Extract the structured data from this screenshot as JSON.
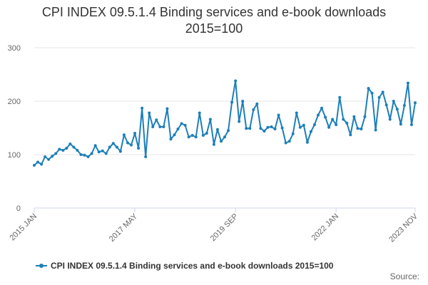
{
  "chart_data": {
    "type": "line",
    "title": "CPI INDEX 09.5.1.4 Binding services and e-book downloads",
    "subtitle": "2015=100",
    "xlabel": "",
    "ylabel": "",
    "ylim": [
      0,
      300
    ],
    "yticks": [
      "0",
      "100",
      "200",
      "300"
    ],
    "grid": true,
    "legend_position": "bottom-left",
    "x_ticks": [
      "2015 JAN",
      "2017 MAY",
      "2019 SEP",
      "2022 JAN",
      "2023 NOV"
    ],
    "x_start": "2015-01",
    "x_end": "2023-11",
    "series": [
      {
        "name": "CPI INDEX 09.5.1.4 Binding services and e-book downloads 2015=100",
        "color": "#1d7fb9",
        "values": [
          80,
          86,
          82,
          96,
          91,
          97,
          102,
          110,
          108,
          112,
          120,
          114,
          108,
          100,
          99,
          96,
          102,
          117,
          105,
          107,
          102,
          114,
          121,
          114,
          106,
          137,
          122,
          118,
          140,
          112,
          187,
          96,
          178,
          152,
          165,
          152,
          152,
          186,
          129,
          137,
          148,
          158,
          155,
          133,
          136,
          133,
          178,
          136,
          140,
          166,
          119,
          147,
          125,
          133,
          145,
          198,
          238,
          162,
          200,
          149,
          149,
          184,
          195,
          149,
          144,
          151,
          152,
          148,
          174,
          150,
          122,
          125,
          139,
          178,
          151,
          155,
          123,
          143,
          156,
          174,
          187,
          170,
          151,
          166,
          156,
          207,
          166,
          159,
          137,
          171,
          149,
          148,
          171,
          224,
          215,
          146,
          207,
          217,
          193,
          166,
          200,
          185,
          157,
          192,
          234,
          156,
          197
        ]
      }
    ]
  },
  "legend": {
    "label": "CPI INDEX 09.5.1.4 Binding services and e-book downloads 2015=100"
  },
  "source_label": "Source:"
}
